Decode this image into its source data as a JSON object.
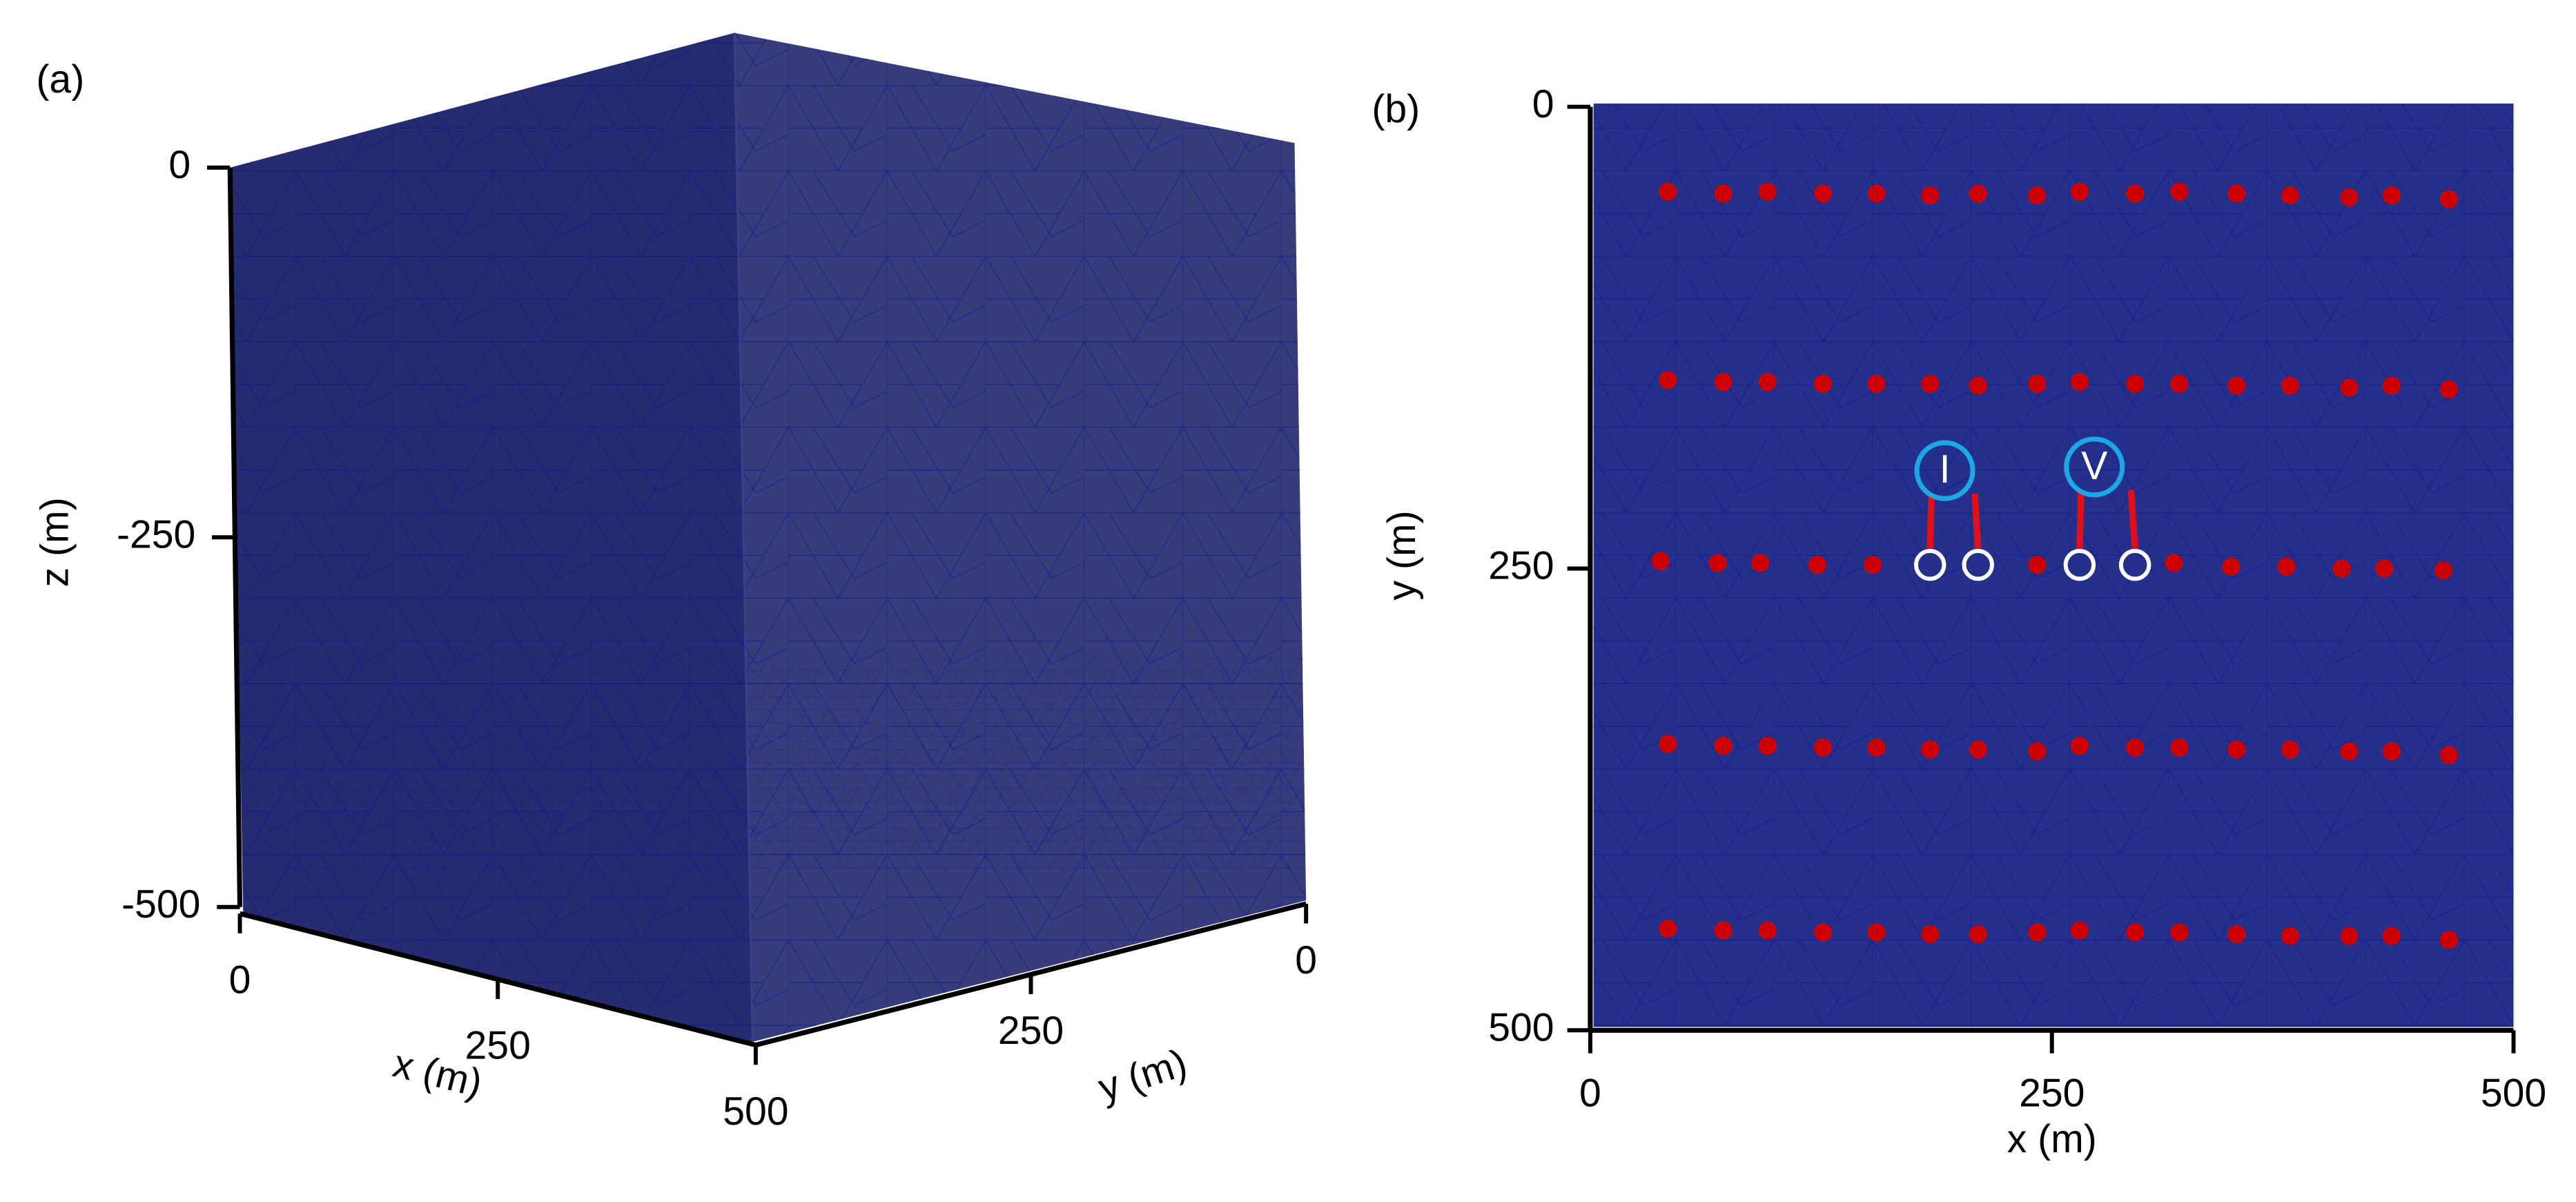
{
  "chart_data": [
    {
      "type": "cube3d",
      "panel_label": "(a)",
      "xlabel": "x (m)",
      "ylabel": "y (m)",
      "zlabel": "z (m)",
      "xlim": [
        0,
        500
      ],
      "xticks": [
        0,
        250,
        500
      ],
      "ylim": [
        0,
        500
      ],
      "yticks": [
        0,
        250
      ],
      "zlim": [
        -500,
        0
      ],
      "zticks": [
        0,
        -250,
        -500
      ],
      "color": "#262c70"
    },
    {
      "type": "scatter",
      "panel_label": "(b)",
      "xlabel": "x (m)",
      "ylabel": "y (m)",
      "xlim": [
        0,
        500
      ],
      "xticks": [
        0,
        250,
        500
      ],
      "ylim": [
        500,
        0
      ],
      "yticks": [
        0,
        250,
        500
      ],
      "color": "#cc0000",
      "series": [
        {
          "x": [
            42,
            72,
            96,
            126,
            155,
            184,
            210,
            242,
            265,
            295,
            319,
            350,
            379,
            411,
            434,
            465
          ],
          "y": [
            46,
            47,
            46,
            47,
            47,
            48,
            47,
            48,
            46,
            47,
            46,
            47,
            48,
            49,
            48,
            50
          ]
        },
        {
          "x": [
            42,
            72,
            96,
            126,
            155,
            184,
            210,
            242,
            265,
            295,
            319,
            350,
            379,
            411,
            434,
            465
          ],
          "y": [
            148,
            149,
            149,
            150,
            150,
            150,
            151,
            150,
            149,
            150,
            150,
            151,
            151,
            152,
            151,
            153
          ]
        },
        {
          "x": [
            38,
            69,
            92,
            123,
            153,
            184,
            210,
            242,
            265,
            295,
            316,
            347,
            377,
            407,
            430,
            462
          ],
          "y": [
            246,
            247,
            247,
            248,
            248,
            249,
            249,
            248,
            247,
            249,
            247,
            249,
            249,
            250,
            250,
            251
          ]
        },
        {
          "x": [
            42,
            72,
            96,
            126,
            155,
            184,
            210,
            242,
            265,
            295,
            319,
            350,
            379,
            411,
            434,
            465
          ],
          "y": [
            345,
            346,
            346,
            347,
            347,
            348,
            348,
            349,
            346,
            347,
            347,
            348,
            348,
            349,
            349,
            351
          ]
        },
        {
          "x": [
            42,
            72,
            96,
            126,
            155,
            184,
            210,
            242,
            265,
            295,
            319,
            350,
            379,
            411,
            434,
            465
          ],
          "y": [
            445,
            446,
            446,
            447,
            447,
            448,
            448,
            447,
            446,
            447,
            447,
            448,
            449,
            449,
            449,
            451
          ]
        }
      ],
      "annotations": [
        {
          "label": "I",
          "x": 192,
          "y": 197,
          "electrodes": [
            184,
            210
          ],
          "electrode_y": 248
        },
        {
          "label": "V",
          "x": 273,
          "y": 195,
          "electrodes": [
            265,
            295
          ],
          "electrode_y": 248
        }
      ]
    }
  ]
}
